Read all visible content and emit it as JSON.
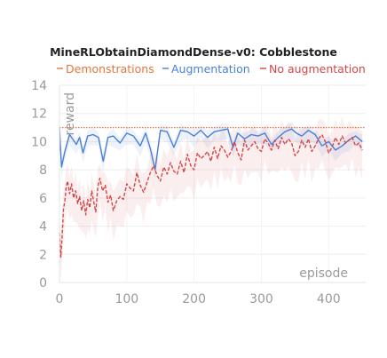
{
  "chart_data": {
    "type": "line",
    "title": "MineRLObtainDiamondDense-v0: Cobblestone",
    "xlabel": "episode",
    "ylabel": "reward",
    "xlim": [
      0,
      455
    ],
    "ylim": [
      0,
      14
    ],
    "xticks": [
      0,
      100,
      200,
      300,
      400
    ],
    "yticks": [
      0,
      2,
      4,
      6,
      8,
      10,
      12,
      14
    ],
    "grid": true,
    "legend": "top",
    "series": [
      {
        "name": "Demonstrations",
        "color": "#e8743b",
        "style": "dotted",
        "x": [
          0,
          455
        ],
        "y": [
          11,
          11
        ]
      },
      {
        "name": "Augmentation",
        "color": "#4a7fd4",
        "style": "solid",
        "x": [
          0,
          3,
          8,
          15,
          25,
          30,
          35,
          42,
          50,
          58,
          65,
          72,
          80,
          90,
          100,
          110,
          120,
          128,
          135,
          142,
          150,
          160,
          170,
          180,
          190,
          200,
          210,
          220,
          230,
          240,
          250,
          258,
          265,
          275,
          285,
          295,
          305,
          315,
          325,
          335,
          345,
          352,
          360,
          370,
          380,
          390,
          400,
          410,
          420,
          430,
          440,
          450
        ],
        "y": [
          11,
          8.2,
          9.3,
          10.5,
          9.8,
          10.3,
          9.2,
          10.4,
          10.5,
          10.3,
          8.6,
          10.3,
          10.4,
          9.9,
          10.6,
          10.4,
          9.7,
          10.6,
          9.5,
          8.0,
          10.8,
          10.7,
          9.6,
          10.8,
          10.7,
          10.4,
          10.8,
          10.3,
          10.7,
          10.8,
          10.9,
          9.6,
          10.6,
          10.2,
          10.5,
          10.4,
          10.6,
          9.8,
          10.3,
          10.7,
          10.9,
          10.6,
          10.4,
          10.8,
          10.5,
          9.7,
          10.0,
          9.4,
          9.7,
          10.1,
          10.4,
          10.0
        ]
      },
      {
        "name": "No augmentation",
        "color": "#d64545",
        "style": "dashed",
        "x": [
          0,
          2,
          4,
          6,
          8,
          10,
          12,
          15,
          18,
          21,
          24,
          27,
          30,
          33,
          36,
          39,
          42,
          45,
          48,
          51,
          54,
          57,
          60,
          64,
          68,
          72,
          76,
          80,
          85,
          90,
          95,
          100,
          105,
          110,
          115,
          120,
          125,
          130,
          135,
          140,
          145,
          150,
          155,
          160,
          165,
          170,
          175,
          180,
          185,
          190,
          195,
          200,
          205,
          210,
          215,
          220,
          225,
          230,
          235,
          240,
          245,
          250,
          255,
          260,
          265,
          270,
          275,
          280,
          285,
          290,
          295,
          300,
          305,
          310,
          315,
          320,
          325,
          330,
          335,
          340,
          345,
          350,
          355,
          360,
          365,
          370,
          375,
          380,
          385,
          390,
          395,
          400,
          405,
          410,
          415,
          420,
          425,
          430,
          435,
          440,
          445,
          450
        ],
        "y": [
          3.5,
          1.8,
          3.3,
          5.2,
          5.8,
          6.8,
          7.2,
          6.3,
          7.0,
          6.0,
          6.5,
          5.6,
          6.1,
          5.1,
          5.8,
          4.8,
          5.9,
          5.3,
          6.5,
          5.7,
          5.0,
          6.8,
          7.4,
          6.5,
          6.9,
          5.7,
          6.2,
          5.1,
          5.8,
          6.1,
          5.9,
          7.0,
          6.7,
          6.5,
          7.8,
          6.9,
          6.4,
          7.1,
          7.8,
          8.3,
          7.6,
          7.2,
          8.2,
          7.7,
          8.5,
          7.9,
          7.7,
          8.6,
          7.8,
          9.1,
          8.3,
          8.0,
          9.2,
          8.8,
          9.0,
          9.3,
          8.6,
          9.6,
          8.8,
          9.7,
          9.4,
          8.9,
          9.3,
          10.0,
          9.2,
          8.7,
          10.1,
          9.4,
          9.7,
          10.0,
          9.5,
          9.3,
          10.2,
          9.9,
          9.4,
          10.1,
          9.5,
          10.3,
          9.8,
          10.2,
          9.9,
          9.0,
          9.3,
          10.1,
          9.6,
          10.2,
          9.3,
          9.7,
          10.2,
          10.5,
          10.0,
          9.2,
          9.6,
          10.3,
          9.8,
          10.4,
          9.9,
          10.1,
          10.3,
          9.7,
          9.9,
          9.4
        ]
      }
    ]
  }
}
